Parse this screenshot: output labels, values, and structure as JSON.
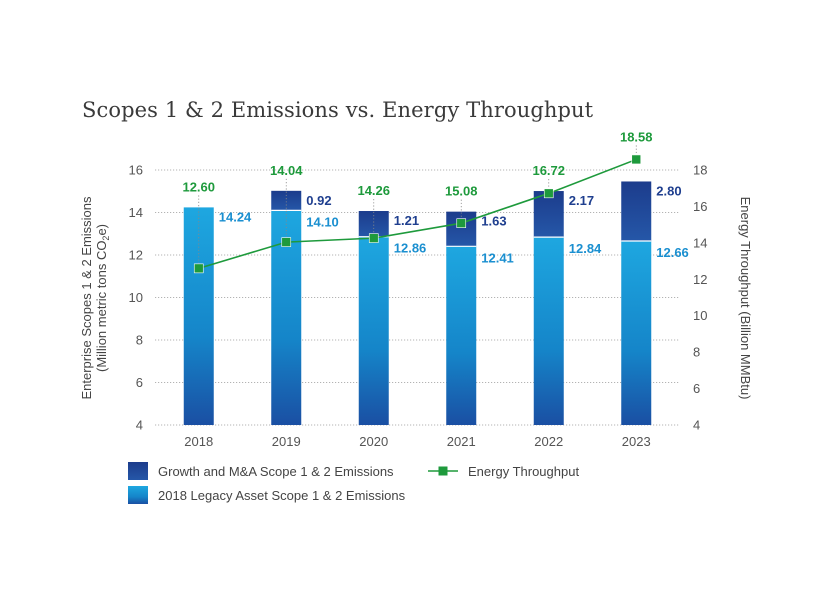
{
  "chart_data": {
    "type": "bar",
    "title": "Scopes 1 & 2 Emissions vs. Energy Throughput",
    "categories": [
      "2018",
      "2019",
      "2020",
      "2021",
      "2022",
      "2023"
    ],
    "y_left": {
      "label_line1": "Enterprise Scopes 1 & 2 Emissions",
      "label_line2": "(Million metric tons CO",
      "label_sub": "2",
      "label_tail": "e)",
      "ylim": [
        4,
        16
      ],
      "ticks": [
        "4",
        "6",
        "8",
        "10",
        "12",
        "14",
        "16"
      ]
    },
    "y_right": {
      "label": "Energy Throughput (Billion MMBtu)",
      "ylim": [
        4,
        18
      ],
      "ticks": [
        "4",
        "6",
        "8",
        "10",
        "12",
        "14",
        "16",
        "18"
      ]
    },
    "series": [
      {
        "name": "2018 Legacy Asset Scope 1 & 2 Emissions",
        "kind": "stacked-bar",
        "color": "#1a9bd7",
        "values": [
          14.24,
          14.1,
          12.86,
          12.41,
          12.84,
          12.66
        ],
        "labels": [
          "14.24",
          "14.10",
          "12.86",
          "12.41",
          "12.84",
          "12.66"
        ]
      },
      {
        "name": "Growth and M&A Scope 1 & 2 Emissions",
        "kind": "stacked-bar",
        "color": "#1f3f8f",
        "values": [
          0,
          0.92,
          1.21,
          1.63,
          2.17,
          2.8
        ],
        "labels": [
          "",
          "0.92",
          "1.21",
          "1.63",
          "2.17",
          "2.80"
        ]
      },
      {
        "name": "Energy Throughput",
        "kind": "line",
        "axis": "right",
        "color": "#1e9a3c",
        "values": [
          12.6,
          14.04,
          14.26,
          15.08,
          16.72,
          18.58
        ],
        "labels": [
          "12.60",
          "14.04",
          "14.26",
          "15.08",
          "16.72",
          "18.58"
        ]
      }
    ],
    "grid": "horizontal dotted",
    "legend_position": "bottom"
  }
}
